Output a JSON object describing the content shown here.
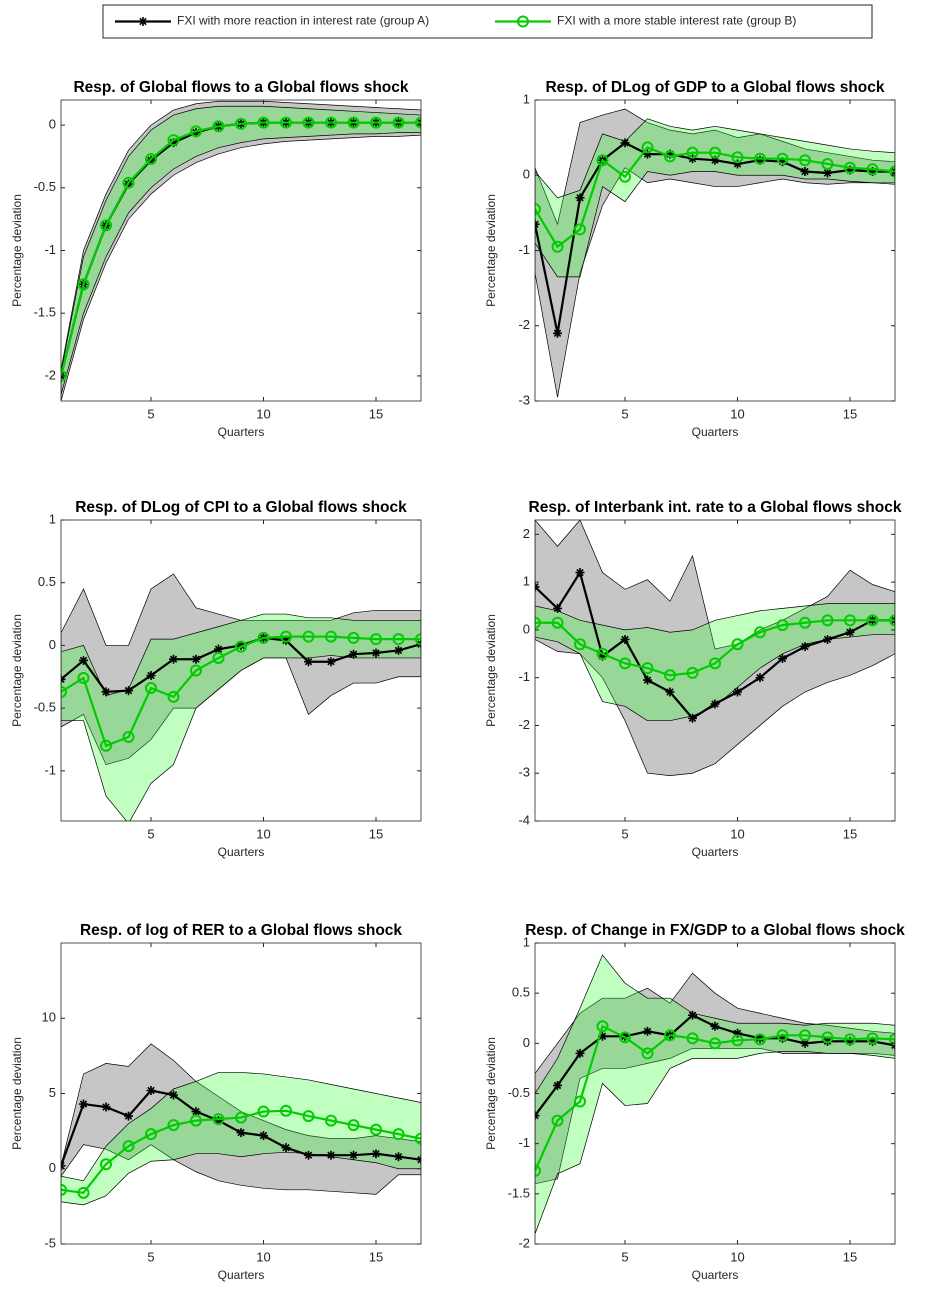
{
  "legend": {
    "entries": [
      {
        "name": "FXI with more reaction in interest rate (group A)",
        "color": "#000000",
        "band_color": "#808080",
        "marker": "asterisk"
      },
      {
        "name": "FXI with a more stable interest rate (group B)",
        "color": "#00cc00",
        "band_color": "#33ff33",
        "marker": "circle"
      }
    ]
  },
  "chart_data": [
    {
      "type": "line",
      "title": "Resp. of Global flows to a Global flows shock",
      "xlabel": "Quarters",
      "ylabel": "Percentage deviation",
      "x": [
        1,
        2,
        3,
        4,
        5,
        6,
        7,
        8,
        9,
        10,
        11,
        12,
        13,
        14,
        15,
        16,
        17
      ],
      "xlim": [
        1,
        17
      ],
      "xticks": [
        5,
        10,
        15
      ],
      "ylim": [
        -2.2,
        0.2
      ],
      "yticks": [
        -2,
        -1.5,
        -1,
        -0.5,
        0
      ],
      "series": [
        {
          "values": [
            -2.0,
            -1.27,
            -0.8,
            -0.47,
            -0.28,
            -0.14,
            -0.06,
            -0.01,
            0.01,
            0.02,
            0.02,
            0.02,
            0.02,
            0.02,
            0.02,
            0.02,
            0.02
          ],
          "lower": [
            -2.2,
            -1.55,
            -1.1,
            -0.75,
            -0.55,
            -0.4,
            -0.3,
            -0.23,
            -0.18,
            -0.15,
            -0.13,
            -0.12,
            -0.11,
            -0.1,
            -0.09,
            -0.09,
            -0.08
          ],
          "upper": [
            -1.95,
            -1.0,
            -0.55,
            -0.2,
            0.0,
            0.12,
            0.17,
            0.19,
            0.19,
            0.19,
            0.18,
            0.17,
            0.16,
            0.15,
            0.14,
            0.13,
            0.12
          ]
        },
        {
          "values": [
            -2.0,
            -1.27,
            -0.8,
            -0.46,
            -0.27,
            -0.12,
            -0.05,
            -0.01,
            0.01,
            0.02,
            0.02,
            0.02,
            0.02,
            0.02,
            0.02,
            0.02,
            0.02
          ],
          "lower": [
            -2.15,
            -1.5,
            -1.05,
            -0.7,
            -0.5,
            -0.35,
            -0.25,
            -0.18,
            -0.14,
            -0.11,
            -0.1,
            -0.09,
            -0.08,
            -0.07,
            -0.07,
            -0.06,
            -0.06
          ],
          "upper": [
            -1.97,
            -1.05,
            -0.6,
            -0.25,
            -0.04,
            0.08,
            0.13,
            0.15,
            0.15,
            0.15,
            0.14,
            0.13,
            0.12,
            0.11,
            0.1,
            0.09,
            0.08
          ]
        }
      ]
    },
    {
      "type": "line",
      "title": "Resp. of DLog of GDP to a Global flows shock",
      "xlabel": "Quarters",
      "ylabel": "Percentage deviation",
      "x": [
        1,
        2,
        3,
        4,
        5,
        6,
        7,
        8,
        9,
        10,
        11,
        12,
        13,
        14,
        15,
        16,
        17
      ],
      "xlim": [
        1,
        17
      ],
      "xticks": [
        5,
        10,
        15
      ],
      "ylim": [
        -3,
        1
      ],
      "yticks": [
        -3,
        -2,
        -1,
        0,
        1
      ],
      "series": [
        {
          "values": [
            -0.65,
            -2.1,
            -0.3,
            0.2,
            0.43,
            0.28,
            0.28,
            0.22,
            0.2,
            0.15,
            0.2,
            0.18,
            0.05,
            0.03,
            0.07,
            0.05,
            0.05
          ],
          "lower": [
            -1.3,
            -2.95,
            -1.3,
            -0.4,
            0.1,
            -0.1,
            -0.05,
            -0.1,
            -0.15,
            -0.15,
            -0.1,
            -0.05,
            -0.1,
            -0.12,
            -0.1,
            -0.1,
            -0.1
          ],
          "upper": [
            0.1,
            -0.65,
            0.7,
            0.8,
            0.88,
            0.7,
            0.6,
            0.55,
            0.6,
            0.5,
            0.55,
            0.45,
            0.35,
            0.3,
            0.25,
            0.2,
            0.18
          ]
        },
        {
          "values": [
            -0.45,
            -0.95,
            -0.72,
            0.2,
            -0.02,
            0.37,
            0.25,
            0.3,
            0.3,
            0.24,
            0.22,
            0.22,
            0.2,
            0.15,
            0.1,
            0.08,
            0.05
          ],
          "lower": [
            -0.9,
            -1.35,
            -1.35,
            -0.15,
            -0.35,
            0.05,
            0.0,
            0.05,
            0.05,
            0.0,
            0.0,
            0.0,
            -0.05,
            -0.05,
            -0.08,
            -0.1,
            -0.12
          ],
          "upper": [
            0.05,
            -0.3,
            -0.2,
            0.55,
            0.45,
            0.75,
            0.65,
            0.6,
            0.65,
            0.6,
            0.55,
            0.5,
            0.45,
            0.4,
            0.35,
            0.32,
            0.3
          ]
        }
      ]
    },
    {
      "type": "line",
      "title": "Resp. of DLog of CPI to a Global flows shock",
      "xlabel": "Quarters",
      "ylabel": "Percentage deviation",
      "x": [
        1,
        2,
        3,
        4,
        5,
        6,
        7,
        8,
        9,
        10,
        11,
        12,
        13,
        14,
        15,
        16,
        17
      ],
      "xlim": [
        1,
        17
      ],
      "xticks": [
        5,
        10,
        15
      ],
      "ylim": [
        -1.4,
        1
      ],
      "yticks": [
        -1,
        -0.5,
        0,
        0.5,
        1
      ],
      "series": [
        {
          "values": [
            -0.27,
            -0.12,
            -0.37,
            -0.36,
            -0.24,
            -0.11,
            -0.11,
            -0.03,
            0.0,
            0.06,
            0.04,
            -0.13,
            -0.13,
            -0.07,
            -0.06,
            -0.04,
            0.01
          ],
          "lower": [
            -0.65,
            -0.55,
            -0.95,
            -0.9,
            -0.75,
            -0.5,
            -0.5,
            -0.35,
            -0.2,
            -0.1,
            -0.1,
            -0.55,
            -0.4,
            -0.3,
            -0.3,
            -0.25,
            -0.25
          ],
          "upper": [
            0.1,
            0.45,
            0.0,
            0.0,
            0.45,
            0.57,
            0.3,
            0.25,
            0.2,
            0.2,
            0.2,
            0.2,
            0.2,
            0.26,
            0.28,
            0.28,
            0.28
          ]
        },
        {
          "values": [
            -0.37,
            -0.26,
            -0.8,
            -0.73,
            -0.34,
            -0.41,
            -0.2,
            -0.1,
            -0.01,
            0.06,
            0.07,
            0.07,
            0.07,
            0.06,
            0.05,
            0.05,
            0.05
          ],
          "lower": [
            -0.6,
            -0.6,
            -1.2,
            -1.42,
            -1.1,
            -0.95,
            -0.5,
            -0.35,
            -0.2,
            -0.1,
            -0.1,
            -0.1,
            -0.08,
            -0.1,
            -0.1,
            -0.1,
            -0.1
          ],
          "upper": [
            -0.05,
            0.0,
            -0.4,
            -0.35,
            0.05,
            0.05,
            0.1,
            0.15,
            0.2,
            0.25,
            0.25,
            0.22,
            0.22,
            0.2,
            0.2,
            0.2,
            0.2
          ]
        }
      ]
    },
    {
      "type": "line",
      "title": "Resp. of Interbank int. rate to a Global flows shock",
      "xlabel": "Quarters",
      "ylabel": "Percentage deviation",
      "x": [
        1,
        2,
        3,
        4,
        5,
        6,
        7,
        8,
        9,
        10,
        11,
        12,
        13,
        14,
        15,
        16,
        17
      ],
      "xlim": [
        1,
        17
      ],
      "xticks": [
        5,
        10,
        15
      ],
      "ylim": [
        -4,
        2.3
      ],
      "yticks": [
        -4,
        -3,
        -2,
        -1,
        0,
        1,
        2
      ],
      "series": [
        {
          "values": [
            0.9,
            0.45,
            1.2,
            -0.55,
            -0.2,
            -1.05,
            -1.3,
            -1.85,
            -1.55,
            -1.3,
            -1.0,
            -0.6,
            -0.35,
            -0.2,
            -0.05,
            0.2,
            0.2
          ],
          "lower": [
            -0.2,
            -0.45,
            -0.5,
            -1.0,
            -1.9,
            -3.0,
            -3.05,
            -3.0,
            -2.8,
            -2.4,
            -2.0,
            -1.6,
            -1.3,
            -1.1,
            -0.95,
            -0.75,
            -0.5
          ],
          "upper": [
            2.3,
            1.75,
            2.3,
            1.2,
            0.85,
            1.05,
            0.6,
            1.55,
            -0.4,
            -0.3,
            0.0,
            0.2,
            0.45,
            0.7,
            1.25,
            0.95,
            0.8
          ]
        },
        {
          "values": [
            0.15,
            0.15,
            -0.3,
            -0.5,
            -0.7,
            -0.8,
            -0.95,
            -0.9,
            -0.7,
            -0.3,
            -0.05,
            0.1,
            0.15,
            0.2,
            0.2,
            0.2,
            0.2
          ],
          "lower": [
            -0.15,
            -0.25,
            -0.5,
            -1.5,
            -1.6,
            -1.9,
            -1.9,
            -1.8,
            -1.6,
            -1.2,
            -0.8,
            -0.5,
            -0.3,
            -0.2,
            -0.15,
            -0.1,
            -0.1
          ],
          "upper": [
            0.5,
            0.4,
            0.2,
            0.1,
            0.0,
            0.05,
            -0.05,
            0.0,
            0.2,
            0.3,
            0.4,
            0.45,
            0.5,
            0.55,
            0.55,
            0.55,
            0.55
          ]
        }
      ]
    },
    {
      "type": "line",
      "title": "Resp. of log of RER to a Global flows shock",
      "xlabel": "Quarters",
      "ylabel": "Percentage deviation",
      "x": [
        1,
        2,
        3,
        4,
        5,
        6,
        7,
        8,
        9,
        10,
        11,
        12,
        13,
        14,
        15,
        16,
        17
      ],
      "xlim": [
        1,
        17
      ],
      "xticks": [
        5,
        10,
        15
      ],
      "ylim": [
        -5,
        15
      ],
      "yticks": [
        -5,
        0,
        5,
        10
      ],
      "series": [
        {
          "values": [
            0.2,
            4.3,
            4.1,
            3.5,
            5.2,
            4.9,
            3.8,
            3.2,
            2.4,
            2.2,
            1.4,
            0.9,
            0.9,
            0.9,
            1.0,
            0.8,
            0.6
          ],
          "lower": [
            -0.5,
            1.6,
            1.3,
            0.6,
            1.6,
            0.6,
            -0.2,
            -0.8,
            -1.1,
            -1.3,
            -1.4,
            -1.4,
            -1.5,
            -1.6,
            -1.7,
            -0.4,
            -0.4
          ],
          "upper": [
            0.2,
            6.3,
            7.0,
            6.8,
            8.3,
            7.2,
            5.8,
            4.8,
            3.8,
            3.2,
            2.6,
            2.2,
            2.0,
            2.0,
            2.2,
            2.0,
            1.8
          ]
        },
        {
          "values": [
            -1.4,
            -1.6,
            0.3,
            1.5,
            2.3,
            2.9,
            3.2,
            3.3,
            3.4,
            3.8,
            3.85,
            3.5,
            3.2,
            2.9,
            2.6,
            2.3,
            2.0
          ],
          "lower": [
            -2.2,
            -2.4,
            -1.8,
            -0.3,
            0.5,
            0.6,
            1.0,
            1.0,
            0.8,
            1.0,
            1.1,
            1.0,
            0.8,
            0.6,
            0.4,
            0.0,
            0.0
          ],
          "upper": [
            -0.5,
            -0.8,
            1.5,
            3.0,
            4.0,
            5.3,
            5.8,
            6.4,
            6.4,
            6.3,
            6.1,
            5.9,
            5.6,
            5.3,
            5.0,
            4.7,
            4.4
          ]
        }
      ]
    },
    {
      "type": "line",
      "title": "Resp. of Change in FX/GDP to a Global flows shock",
      "xlabel": "Quarters",
      "ylabel": "Percentage deviation",
      "x": [
        1,
        2,
        3,
        4,
        5,
        6,
        7,
        8,
        9,
        10,
        11,
        12,
        13,
        14,
        15,
        16,
        17
      ],
      "xlim": [
        1,
        17
      ],
      "xticks": [
        5,
        10,
        15
      ],
      "ylim": [
        -2,
        1
      ],
      "yticks": [
        -2,
        -1.5,
        -1,
        -0.5,
        0,
        0.5,
        1
      ],
      "series": [
        {
          "values": [
            -0.72,
            -0.42,
            -0.1,
            0.07,
            0.07,
            0.12,
            0.08,
            0.28,
            0.17,
            0.1,
            0.05,
            0.05,
            0.0,
            0.02,
            0.02,
            0.02,
            -0.02
          ],
          "lower": [
            -1.4,
            -1.35,
            -0.35,
            -0.25,
            -0.25,
            -0.2,
            -0.15,
            -0.05,
            -0.05,
            -0.05,
            -0.05,
            -0.1,
            -0.1,
            -0.1,
            -0.1,
            -0.1,
            -0.12
          ],
          "upper": [
            -0.3,
            0.0,
            0.3,
            0.45,
            0.45,
            0.55,
            0.4,
            0.7,
            0.5,
            0.35,
            0.3,
            0.25,
            0.2,
            0.18,
            0.15,
            0.12,
            0.1
          ]
        },
        {
          "values": [
            -1.27,
            -0.77,
            -0.58,
            0.17,
            0.06,
            -0.1,
            0.08,
            0.05,
            0.0,
            0.03,
            0.04,
            0.08,
            0.08,
            0.06,
            0.04,
            0.05,
            0.04
          ],
          "lower": [
            -1.9,
            -1.3,
            -1.2,
            -0.4,
            -0.62,
            -0.6,
            -0.25,
            -0.15,
            -0.15,
            -0.15,
            -0.1,
            -0.08,
            -0.08,
            -0.1,
            -0.1,
            -0.12,
            -0.15
          ],
          "upper": [
            -0.5,
            -0.15,
            0.35,
            0.88,
            0.6,
            0.45,
            0.45,
            0.3,
            0.25,
            0.2,
            0.2,
            0.2,
            0.18,
            0.2,
            0.2,
            0.2,
            0.18
          ]
        }
      ]
    }
  ]
}
